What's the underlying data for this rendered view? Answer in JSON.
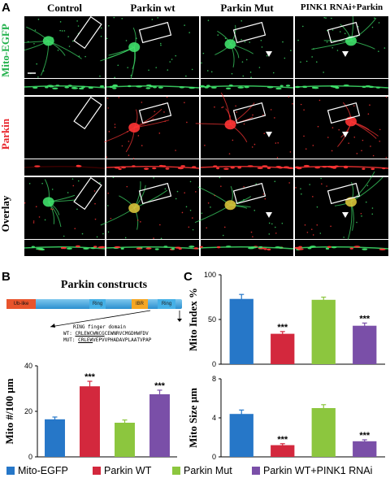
{
  "panel_labels": {
    "a": "A",
    "b": "B",
    "c": "C"
  },
  "panel_a": {
    "columns": [
      "Control",
      "Parkin wt",
      "Parkin Mut",
      "PINK1 RNAi+Parkin"
    ],
    "rows": [
      "Mito-EGFP",
      "Parkin",
      "Overlay"
    ],
    "row_colors": [
      "#22b14c",
      "#e8232a",
      "#000000"
    ]
  },
  "panel_b": {
    "title": "Parkin constructs",
    "domains": [
      "Ub-like",
      "Ring",
      "IBR",
      "Ring"
    ],
    "ring_caption": "RING finger domain",
    "wt_label": "WT:",
    "wt_seq_underlined": "CRLEWCWNCG",
    "wt_seq_rest": "CEWNRVCMGDHWFDV",
    "mut_label": "MUT:",
    "mut_seq_underlined": "CRLEW",
    "mut_seq_rest": "VEPVVPHADAVPLAATVPAP"
  },
  "colors": {
    "mito_egfp": "#2677c8",
    "parkin_wt": "#d3283d",
    "parkin_mut": "#8cc63e",
    "parkin_pink1": "#7a4fa8"
  },
  "legend": [
    "Mito-EGFP",
    "Parkin WT",
    "Parkin Mut",
    "Parkin WT+PINK1 RNAi"
  ],
  "chart_data": [
    {
      "type": "bar",
      "ylabel": "Mito #/100 μm",
      "categories": [
        "Mito-EGFP",
        "Parkin WT",
        "Parkin Mut",
        "Parkin WT+PINK1 RNAi"
      ],
      "values": [
        16.5,
        31,
        15,
        27.5
      ],
      "errors": [
        1,
        2.2,
        1.2,
        1.8
      ],
      "significance": [
        "",
        "***",
        "",
        "***"
      ],
      "ylim": [
        0,
        40
      ],
      "yticks": [
        0,
        20,
        40
      ]
    },
    {
      "type": "bar",
      "ylabel": "Mito Index %",
      "categories": [
        "Mito-EGFP",
        "Parkin WT",
        "Parkin Mut",
        "Parkin WT+PINK1 RNAi"
      ],
      "values": [
        73,
        34,
        72,
        43
      ],
      "errors": [
        5,
        2.5,
        3,
        3
      ],
      "significance": [
        "",
        "***",
        "",
        "***"
      ],
      "ylim": [
        0,
        100
      ],
      "yticks": [
        0,
        50,
        100
      ]
    },
    {
      "type": "bar",
      "ylabel": "Mito Size μm",
      "categories": [
        "Mito-EGFP",
        "Parkin WT",
        "Parkin Mut",
        "Parkin WT+PINK1 RNAi"
      ],
      "values": [
        4.4,
        1.2,
        5,
        1.6
      ],
      "errors": [
        0.4,
        0.15,
        0.35,
        0.15
      ],
      "significance": [
        "",
        "***",
        "",
        "***"
      ],
      "ylim": [
        0,
        8
      ],
      "yticks": [
        0,
        4,
        8
      ]
    }
  ]
}
